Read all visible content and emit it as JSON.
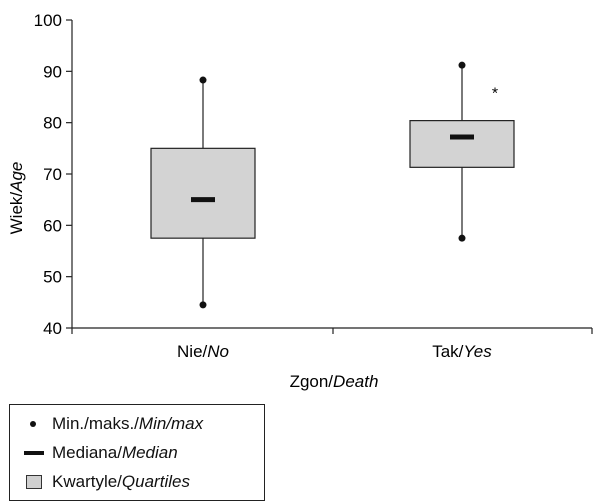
{
  "chart_data": {
    "type": "box",
    "ylabel": {
      "main": "Wiek/",
      "italic": "Age"
    },
    "xlabel": {
      "main": "Zgon/",
      "italic": "Death"
    },
    "ylim": [
      40,
      100
    ],
    "yticks": [
      40,
      50,
      60,
      70,
      80,
      90,
      100
    ],
    "categories": [
      {
        "main": "Nie/",
        "italic": "No"
      },
      {
        "main": "Tak/",
        "italic": "Yes"
      }
    ],
    "boxes": [
      {
        "min": 44.5,
        "q1": 57.5,
        "median": 65,
        "q3": 75,
        "max": 88.3,
        "outliers": []
      },
      {
        "min": 57.5,
        "q1": 71.3,
        "median": 77.2,
        "q3": 80.4,
        "max": 91.2,
        "outliers": [
          86.5
        ]
      }
    ],
    "outlier_marker": "*",
    "box_color": "#d3d3d3",
    "legend": [
      {
        "symbol": "dot",
        "main": "Min./maks./",
        "italic": "Min/max"
      },
      {
        "symbol": "line",
        "main": "Mediana/",
        "italic": "Median"
      },
      {
        "symbol": "box",
        "main": "Kwartyle/",
        "italic": "Quartiles"
      }
    ]
  }
}
